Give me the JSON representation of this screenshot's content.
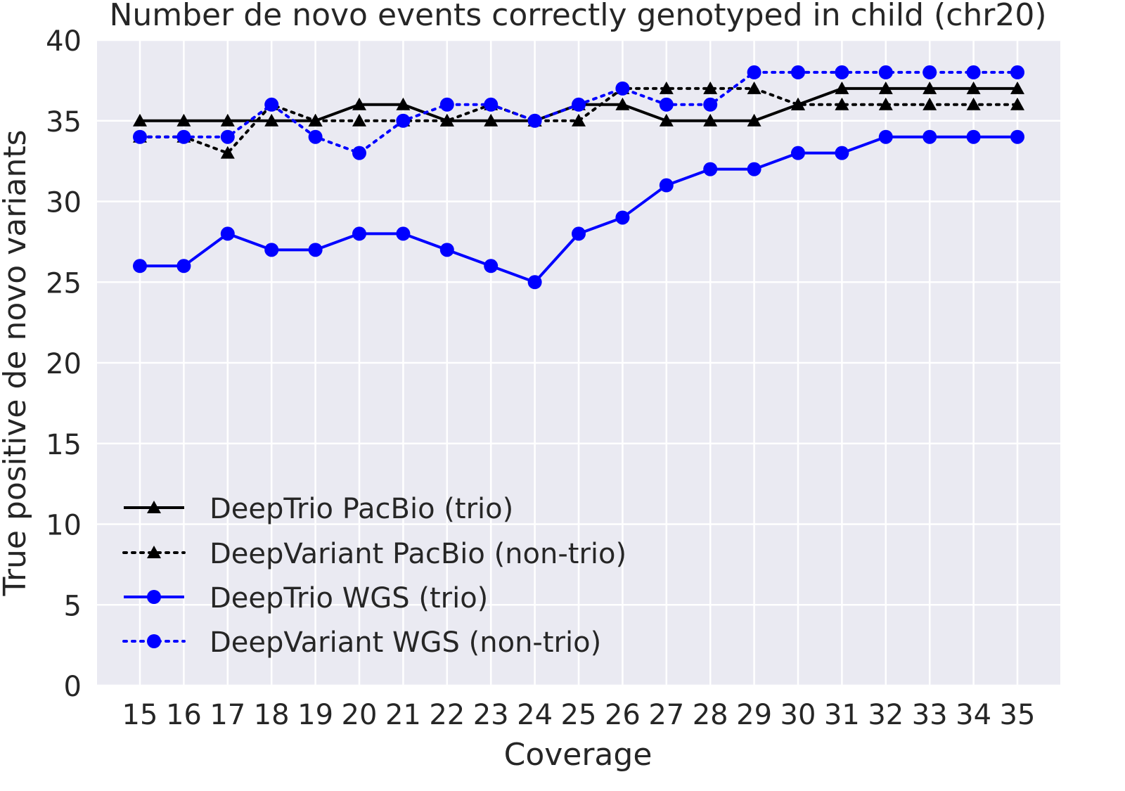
{
  "chart_data": {
    "type": "line",
    "title": "Number de novo events correctly genotyped in child (chr20)",
    "xlabel": "Coverage",
    "ylabel": "True positive de novo variants",
    "x": [
      15,
      16,
      17,
      18,
      19,
      20,
      21,
      22,
      23,
      24,
      25,
      26,
      27,
      28,
      29,
      30,
      31,
      32,
      33,
      34,
      35
    ],
    "x_tick_labels": [
      "15",
      "16",
      "17",
      "18",
      "19",
      "20",
      "21",
      "22",
      "23",
      "24",
      "25",
      "26",
      "27",
      "28",
      "29",
      "30",
      "31",
      "32",
      "33",
      "34",
      "35"
    ],
    "ylim": [
      0,
      40
    ],
    "y_ticks": [
      0,
      5,
      10,
      15,
      20,
      25,
      30,
      35,
      40
    ],
    "grid": true,
    "legend_position": "lower-left",
    "series": [
      {
        "name": "DeepTrio PacBio (trio)",
        "color": "#000000",
        "line_style": "solid",
        "marker": "triangle",
        "values": [
          35,
          35,
          35,
          35,
          35,
          36,
          36,
          35,
          35,
          35,
          36,
          36,
          35,
          35,
          35,
          36,
          37,
          37,
          37,
          37,
          37
        ]
      },
      {
        "name": "DeepVariant PacBio (non-trio)",
        "color": "#000000",
        "line_style": "dotted",
        "marker": "triangle",
        "values": [
          34,
          34,
          33,
          36,
          35,
          35,
          35,
          35,
          36,
          35,
          35,
          37,
          37,
          37,
          37,
          36,
          36,
          36,
          36,
          36,
          36
        ]
      },
      {
        "name": "DeepTrio WGS (trio)",
        "color": "#0000ff",
        "line_style": "solid",
        "marker": "circle",
        "values": [
          26,
          26,
          28,
          27,
          27,
          28,
          28,
          27,
          26,
          25,
          28,
          29,
          31,
          32,
          32,
          33,
          33,
          34,
          34,
          34,
          34
        ]
      },
      {
        "name": "DeepVariant WGS (non-trio)",
        "color": "#0000ff",
        "line_style": "dotted",
        "marker": "circle",
        "values": [
          34,
          34,
          34,
          36,
          34,
          33,
          35,
          36,
          36,
          35,
          36,
          37,
          36,
          36,
          38,
          38,
          38,
          38,
          38,
          38,
          38
        ]
      }
    ]
  },
  "colors": {
    "plot_background": "#eaeaf2",
    "grid": "#ffffff",
    "text": "#262626"
  }
}
